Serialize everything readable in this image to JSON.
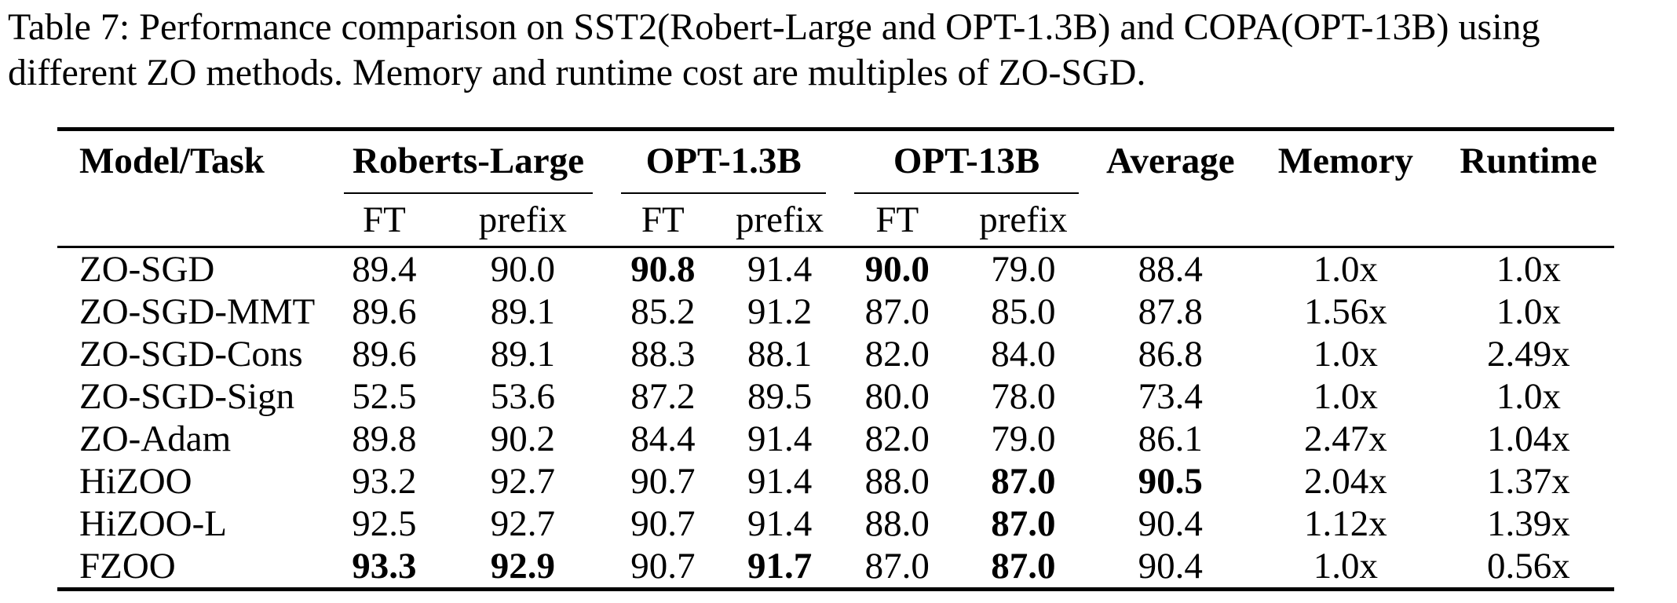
{
  "page": {
    "caption": "Table 7: Performance comparison on SST2(Robert-Large and OPT-1.3B) and COPA(OPT-13B) using different ZO methods. Memory and runtime cost are multiples of ZO-SGD."
  },
  "table": {
    "corner_header": "Model/Task",
    "groups": [
      {
        "label": "Roberts-Large",
        "sub": [
          "FT",
          "prefix"
        ]
      },
      {
        "label": "OPT-1.3B",
        "sub": [
          "FT",
          "prefix"
        ]
      },
      {
        "label": "OPT-13B",
        "sub": [
          "FT",
          "prefix"
        ]
      }
    ],
    "scalar_headers": [
      "Average",
      "Memory",
      "Runtime"
    ],
    "rows": [
      {
        "model": "ZO-SGD",
        "cells": [
          {
            "text": "89.4",
            "bold": false
          },
          {
            "text": "90.0",
            "bold": false
          },
          {
            "text": "90.8",
            "bold": true
          },
          {
            "text": "91.4",
            "bold": false
          },
          {
            "text": "90.0",
            "bold": true
          },
          {
            "text": "79.0",
            "bold": false
          },
          {
            "text": "88.4",
            "bold": false
          },
          {
            "text": "1.0x",
            "bold": false
          },
          {
            "text": "1.0x",
            "bold": false
          }
        ]
      },
      {
        "model": "ZO-SGD-MMT",
        "cells": [
          {
            "text": "89.6",
            "bold": false
          },
          {
            "text": "89.1",
            "bold": false
          },
          {
            "text": "85.2",
            "bold": false
          },
          {
            "text": "91.2",
            "bold": false
          },
          {
            "text": "87.0",
            "bold": false
          },
          {
            "text": "85.0",
            "bold": false
          },
          {
            "text": "87.8",
            "bold": false
          },
          {
            "text": "1.56x",
            "bold": false
          },
          {
            "text": "1.0x",
            "bold": false
          }
        ]
      },
      {
        "model": "ZO-SGD-Cons",
        "cells": [
          {
            "text": "89.6",
            "bold": false
          },
          {
            "text": "89.1",
            "bold": false
          },
          {
            "text": "88.3",
            "bold": false
          },
          {
            "text": "88.1",
            "bold": false
          },
          {
            "text": "82.0",
            "bold": false
          },
          {
            "text": "84.0",
            "bold": false
          },
          {
            "text": "86.8",
            "bold": false
          },
          {
            "text": "1.0x",
            "bold": false
          },
          {
            "text": "2.49x",
            "bold": false
          }
        ]
      },
      {
        "model": "ZO-SGD-Sign",
        "cells": [
          {
            "text": "52.5",
            "bold": false
          },
          {
            "text": "53.6",
            "bold": false
          },
          {
            "text": "87.2",
            "bold": false
          },
          {
            "text": "89.5",
            "bold": false
          },
          {
            "text": "80.0",
            "bold": false
          },
          {
            "text": "78.0",
            "bold": false
          },
          {
            "text": "73.4",
            "bold": false
          },
          {
            "text": "1.0x",
            "bold": false
          },
          {
            "text": "1.0x",
            "bold": false
          }
        ]
      },
      {
        "model": "ZO-Adam",
        "cells": [
          {
            "text": "89.8",
            "bold": false
          },
          {
            "text": "90.2",
            "bold": false
          },
          {
            "text": "84.4",
            "bold": false
          },
          {
            "text": "91.4",
            "bold": false
          },
          {
            "text": "82.0",
            "bold": false
          },
          {
            "text": "79.0",
            "bold": false
          },
          {
            "text": "86.1",
            "bold": false
          },
          {
            "text": "2.47x",
            "bold": false
          },
          {
            "text": "1.04x",
            "bold": false
          }
        ]
      },
      {
        "model": "HiZOO",
        "cells": [
          {
            "text": "93.2",
            "bold": false
          },
          {
            "text": "92.7",
            "bold": false
          },
          {
            "text": "90.7",
            "bold": false
          },
          {
            "text": "91.4",
            "bold": false
          },
          {
            "text": "88.0",
            "bold": false
          },
          {
            "text": "87.0",
            "bold": true
          },
          {
            "text": "90.5",
            "bold": true
          },
          {
            "text": "2.04x",
            "bold": false
          },
          {
            "text": "1.37x",
            "bold": false
          }
        ]
      },
      {
        "model": "HiZOO-L",
        "cells": [
          {
            "text": "92.5",
            "bold": false
          },
          {
            "text": "92.7",
            "bold": false
          },
          {
            "text": "90.7",
            "bold": false
          },
          {
            "text": "91.4",
            "bold": false
          },
          {
            "text": "88.0",
            "bold": false
          },
          {
            "text": "87.0",
            "bold": true
          },
          {
            "text": "90.4",
            "bold": false
          },
          {
            "text": "1.12x",
            "bold": false
          },
          {
            "text": "1.39x",
            "bold": false
          }
        ]
      },
      {
        "model": "FZOO",
        "cells": [
          {
            "text": "93.3",
            "bold": true
          },
          {
            "text": "92.9",
            "bold": true
          },
          {
            "text": "90.7",
            "bold": false
          },
          {
            "text": "91.7",
            "bold": true
          },
          {
            "text": "87.0",
            "bold": false
          },
          {
            "text": "87.0",
            "bold": true
          },
          {
            "text": "90.4",
            "bold": false
          },
          {
            "text": "1.0x",
            "bold": false
          },
          {
            "text": "0.56x",
            "bold": false
          }
        ]
      }
    ]
  }
}
